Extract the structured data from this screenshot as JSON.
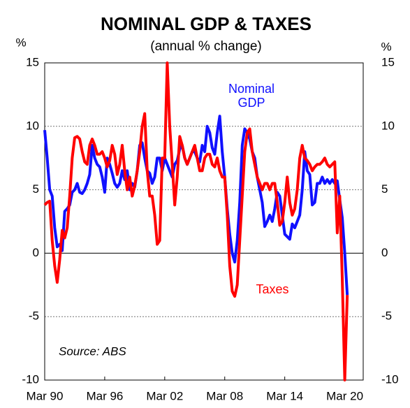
{
  "chart_data": {
    "type": "line",
    "title": "NOMINAL GDP & TAXES",
    "subtitle": "(annual % change)",
    "ylabel": "%",
    "y2label": "%",
    "annotation": "Source: ABS",
    "categories": [
      "Mar 90",
      null,
      null,
      null,
      null,
      null,
      null,
      null,
      null,
      null,
      null,
      null,
      null,
      null,
      null,
      null,
      null,
      null,
      null,
      null,
      null,
      null,
      null,
      null,
      "Mar 96",
      null,
      null,
      null,
      null,
      null,
      null,
      null,
      null,
      null,
      null,
      null,
      null,
      null,
      null,
      null,
      null,
      null,
      null,
      null,
      null,
      null,
      null,
      null,
      "Mar 02",
      null,
      null,
      null,
      null,
      null,
      null,
      null,
      null,
      null,
      null,
      null,
      null,
      null,
      null,
      null,
      null,
      null,
      null,
      null,
      null,
      null,
      null,
      null,
      "Mar 08",
      null,
      null,
      null,
      null,
      null,
      null,
      null,
      null,
      null,
      null,
      null,
      null,
      null,
      null,
      null,
      null,
      null,
      null,
      null,
      null,
      null,
      null,
      null,
      "Mar 14",
      null,
      null,
      null,
      null,
      null,
      null,
      null,
      null,
      null,
      null,
      null,
      null,
      null,
      null,
      null,
      null,
      null,
      null,
      null,
      null,
      null,
      null,
      null,
      "Mar 20",
      null
    ],
    "series": [
      {
        "name": "Nominal GDP",
        "color": "#1010ff",
        "values": [
          9.7,
          7.5,
          5,
          4.5,
          2,
          0.5,
          0.7,
          0.2,
          3.3,
          3.5,
          3.8,
          4.8,
          5,
          5.5,
          4.8,
          4.7,
          5,
          5.5,
          6.2,
          8.5,
          7.5,
          7,
          6.8,
          6,
          4.8,
          7.5,
          7,
          6.3,
          5.5,
          5.2,
          5.5,
          6.5,
          5.8,
          6.5,
          5,
          5.5,
          5.2,
          6.5,
          8.5,
          8.7,
          7.5,
          6.5,
          6.3,
          5.5,
          6,
          7.5,
          7.5,
          6.5,
          7.5,
          7,
          6.5,
          6,
          7,
          7.3,
          8.2,
          8.5,
          7.5,
          7,
          7.5,
          8,
          8,
          7.5,
          7.2,
          8.5,
          8,
          10,
          9.5,
          8.3,
          7.8,
          9.5,
          10.8,
          8,
          6,
          3.5,
          1.5,
          0,
          -0.7,
          1,
          4,
          8.5,
          9.8,
          9.5,
          9,
          8,
          7.5,
          6,
          5,
          4,
          2.1,
          2.5,
          3,
          2.5,
          3.5,
          4.8,
          4.5,
          3,
          1.5,
          1.3,
          1.1,
          2.3,
          2,
          2.5,
          3,
          5,
          8,
          6.5,
          6.2,
          3.8,
          4,
          5.5,
          5.5,
          6,
          5.5,
          5.8,
          5.5,
          5.8,
          5.5,
          5.7,
          4.2,
          2.8,
          0,
          -3.3
        ]
      },
      {
        "name": "Taxes",
        "color": "#ff0000",
        "values": [
          3.8,
          4,
          4.1,
          1,
          -1,
          -2.3,
          -0.5,
          1.8,
          1.2,
          2,
          4.5,
          7.5,
          9.1,
          9.2,
          9,
          8,
          7.2,
          7,
          8.5,
          9,
          8.5,
          7.8,
          7.8,
          8,
          7.5,
          6.8,
          7.3,
          8.5,
          7.8,
          6.2,
          7,
          8.5,
          6.5,
          5,
          6,
          4.5,
          5.3,
          6.5,
          8,
          10,
          11,
          6.5,
          4.5,
          4.5,
          3,
          0.7,
          1,
          7.5,
          7.5,
          15,
          10,
          7,
          3.8,
          6,
          9.2,
          8.5,
          7.5,
          7,
          7.5,
          8,
          8.5,
          7.5,
          6.5,
          6.5,
          7.5,
          7.8,
          7.8,
          7,
          6.8,
          7.5,
          6.5,
          6,
          6,
          3,
          -1,
          -3,
          -3.4,
          -2.5,
          1,
          4.5,
          8,
          9.5,
          9.8,
          8,
          7,
          6,
          5.5,
          5,
          5.5,
          5.5,
          5,
          5.5,
          5.5,
          4,
          2.2,
          2.5,
          4,
          6,
          4,
          3,
          3.5,
          5,
          7.5,
          8.5,
          7.5,
          7.3,
          7,
          6.5,
          6.8,
          7,
          7,
          7.2,
          7.5,
          7,
          6.8,
          7,
          7.2,
          1.6,
          4.5,
          -2,
          -10,
          -3.3
        ]
      }
    ],
    "ylim": [
      -10,
      15
    ],
    "yticks": [
      15,
      10,
      5,
      0,
      -5,
      -10
    ],
    "y2lim": [
      -10,
      15
    ],
    "y2ticks": [
      15,
      10,
      5,
      0,
      -5,
      -10
    ],
    "grid": true
  }
}
